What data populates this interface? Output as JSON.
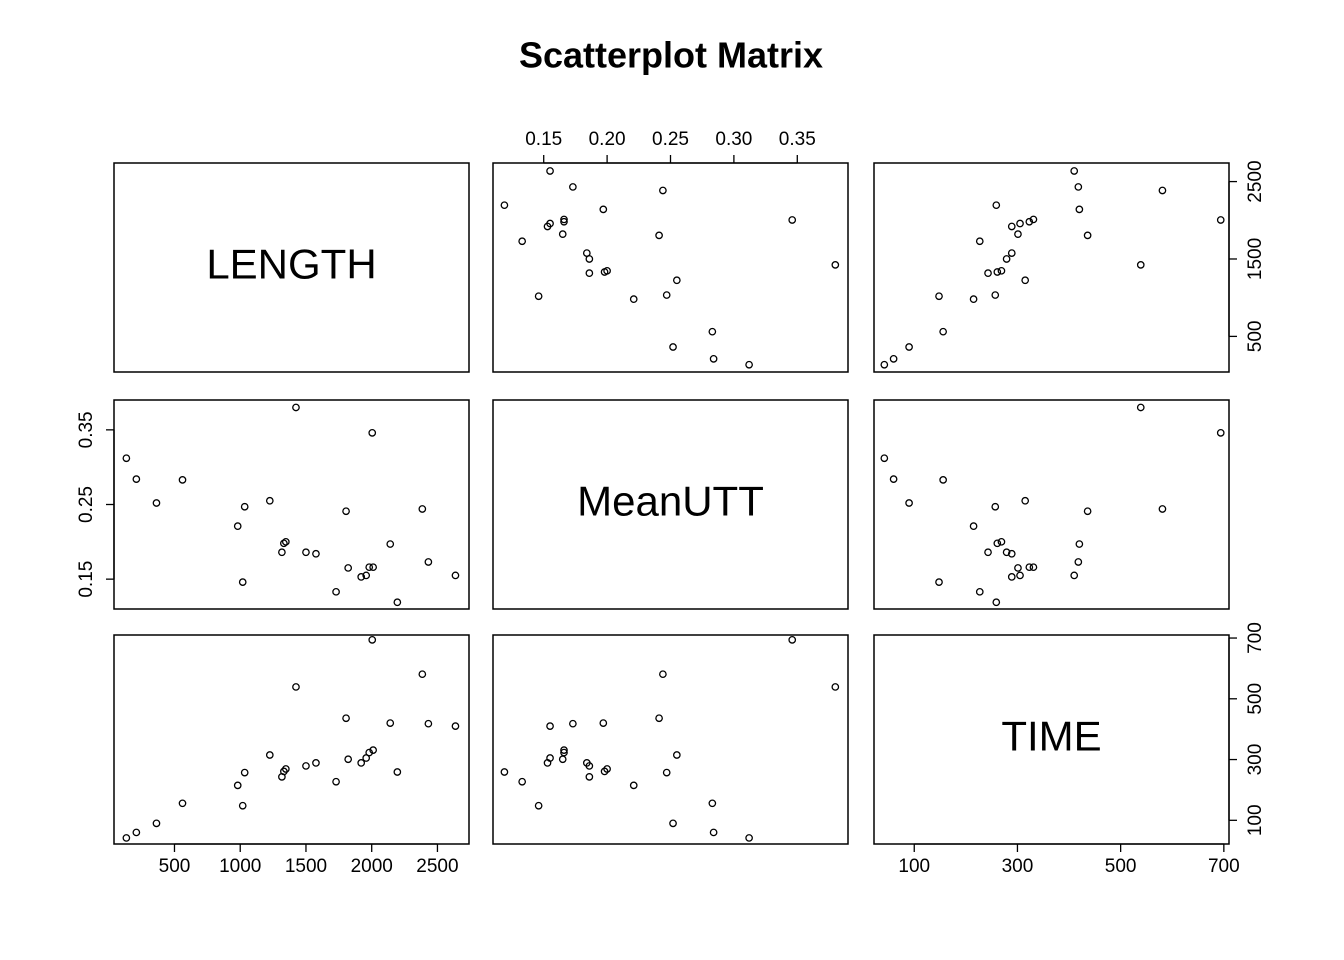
{
  "chart_data": {
    "type": "scatter_matrix",
    "title": "Scatterplot Matrix",
    "point_color": "#000000",
    "variables": [
      {
        "name": "LENGTH",
        "values": [
          134,
          210,
          363,
          561,
          981,
          1019,
          1034,
          1225,
          1317,
          1332,
          1347,
          1500,
          1576,
          1729,
          1805,
          1821,
          1920,
          1958,
          1981,
          2004,
          2011,
          2141,
          2195,
          2385,
          2431,
          2637,
          1424
        ],
        "lim": [
          40,
          2740
        ],
        "xticks": [
          500,
          1000,
          1500,
          2000,
          2500
        ],
        "yticks": [
          500,
          1500,
          2500
        ]
      },
      {
        "name": "MeanUTT",
        "values": [
          0.312,
          0.284,
          0.252,
          0.283,
          0.221,
          0.146,
          0.247,
          0.255,
          0.186,
          0.198,
          0.2,
          0.186,
          0.184,
          0.133,
          0.241,
          0.165,
          0.153,
          0.155,
          0.166,
          0.346,
          0.166,
          0.197,
          0.119,
          0.244,
          0.173,
          0.155,
          0.38
        ],
        "lim": [
          0.11,
          0.39
        ],
        "xticks": [
          0.15,
          {
            "value": 0.2,
            "label": "0.20"
          },
          0.25,
          {
            "value": 0.3,
            "label": "0.30"
          },
          0.35
        ],
        "yticks": [
          0.15,
          0.25,
          0.35
        ]
      },
      {
        "name": "TIME",
        "values": [
          42,
          60,
          90,
          156,
          215,
          148,
          257,
          315,
          243,
          261,
          269,
          279,
          289,
          227,
          436,
          301,
          289,
          305,
          323,
          694,
          331,
          420,
          259,
          581,
          418,
          410,
          539
        ],
        "lim": [
          22,
          710
        ],
        "xticks": [
          100,
          300,
          500,
          700
        ],
        "yticks": [
          100,
          300,
          500,
          700
        ]
      }
    ]
  }
}
